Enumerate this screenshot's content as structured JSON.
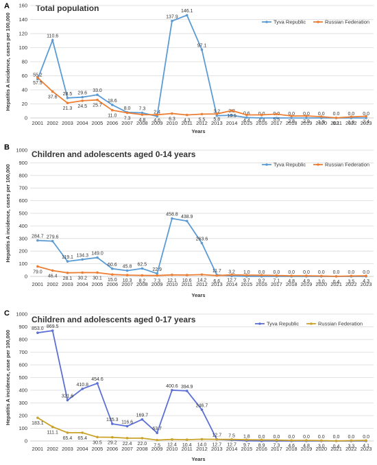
{
  "years": [
    "2001",
    "2002",
    "2003",
    "2004",
    "2005",
    "2006",
    "2007",
    "2008",
    "2009",
    "2010",
    "2011",
    "2012",
    "2013",
    "2014",
    "2015",
    "2016",
    "2017",
    "2018",
    "2019",
    "2020",
    "2021",
    "2022",
    "2023"
  ],
  "colors": {
    "tyva_ab": "#5b9bd5",
    "russia_ab": "#ed7d31",
    "tyva_c": "#5b6fd5",
    "russia_c": "#c9a227"
  },
  "chart_data": [
    {
      "type": "line",
      "panel": "A",
      "title": "Total population",
      "xlabel": "Years",
      "ylabel": "Hepatitis A incidence, cases per 100,000",
      "ylim": [
        0,
        160
      ],
      "yticks": [
        0,
        20,
        40,
        60,
        80,
        100,
        120,
        140,
        160
      ],
      "legend_position": "top-right",
      "series": [
        {
          "name": "Tyva Republic",
          "values": [
            55.2,
            110.6,
            28.5,
            29.6,
            33.0,
            18.6,
            8.0,
            7.3,
            2.4,
            137.9,
            146.1,
            97.1,
            3.2,
            3.8,
            0.6,
            0.0,
            0.0,
            0.0,
            0.0,
            0.0,
            0.0,
            0.0,
            0.0
          ],
          "labels": [
            "55.2",
            "110.6",
            "28.5",
            "29.6",
            "33.0",
            "18.6",
            "8.0",
            "7.3",
            "2.4",
            "137.9",
            "146.1",
            "97.1",
            "3.2",
            "3.8",
            "0.6",
            "0.0",
            "0.0",
            "0.0",
            "0.0",
            "0.0",
            "0.0",
            "0.0",
            "0.0"
          ]
        },
        {
          "name": "Russian Federation",
          "values": [
            57.5,
            37.6,
            21.3,
            24.5,
            25.7,
            11.0,
            7.3,
            4.8,
            4.6,
            6.3,
            4.3,
            5.5,
            5.8,
            10.5,
            4.4,
            4.4,
            5.5,
            2.8,
            2.9,
            1.9,
            0.1,
            1.6,
            2.4
          ],
          "labels": [
            "57.5",
            "37.6",
            "21.3",
            "24.5",
            "25.7",
            "11.0",
            "7.3",
            "4.8",
            "4.6",
            "6.3",
            "4.3",
            "5.5",
            "5.8",
            "10.5",
            "4.4",
            "4.4",
            "5.5",
            "2.8",
            "2.9",
            "1.9",
            "0.1",
            "1.6",
            "2.4"
          ]
        }
      ]
    },
    {
      "type": "line",
      "panel": "B",
      "title": "Children and adolescents aged 0-14 years",
      "xlabel": "Years",
      "ylabel": "Hepatitis A incidence, cases per 100,000",
      "ylim": [
        0,
        1000
      ],
      "yticks": [
        0,
        100,
        200,
        300,
        400,
        500,
        600,
        700,
        800,
        900,
        1000
      ],
      "legend_position": "top-right",
      "series": [
        {
          "name": "Tyva Republic",
          "values": [
            284.7,
            279.6,
            119.1,
            134.3,
            149.0,
            60.6,
            45.8,
            62.5,
            22.9,
            458.8,
            438.9,
            263.6,
            11.7,
            3.2,
            1.0,
            0.0,
            0.0,
            0.0,
            0.0,
            0.0,
            0.0,
            0.0,
            0.0
          ],
          "labels": [
            "284.7",
            "279.6",
            "119.1",
            "134.3",
            "149.0",
            "60.6",
            "45.8",
            "62.5",
            "22.9",
            "458.8",
            "438.9",
            "263.6",
            "11.7",
            "3.2",
            "1.0",
            "0.0",
            "0.0",
            "0.0",
            "0.0",
            "0.0",
            "0.0",
            "0.0",
            "0.0"
          ]
        },
        {
          "name": "Russian Federation",
          "values": [
            79.0,
            46.4,
            28.1,
            30.2,
            30.1,
            15.0,
            10.3,
            8.2,
            7.3,
            12.1,
            10.6,
            14.2,
            6.6,
            12.7,
            9.7,
            9.2,
            7.1,
            4.8,
            4.9,
            3.0,
            0.4,
            3.5,
            4.3
          ],
          "labels": [
            "79.0",
            "46.4",
            "28.1",
            "30.2",
            "30.1",
            "15.0",
            "10.3",
            "8.2",
            "7.3",
            "12.1",
            "10.6",
            "14.2",
            "6.6",
            "12.7",
            "9.7",
            "9.2",
            "7.1",
            "4.8",
            "4.9",
            "3.0",
            "0.4",
            "3.5",
            "4.3"
          ]
        }
      ]
    },
    {
      "type": "line",
      "panel": "C",
      "title": "Children and adolescents aged 0-17 years",
      "xlabel": "Years",
      "ylabel": "Hepatitis A incidence, case per 100,000",
      "ylim": [
        0,
        1000
      ],
      "yticks": [
        0,
        100,
        200,
        300,
        400,
        500,
        600,
        700,
        800,
        900,
        1000
      ],
      "legend_position": "top-right",
      "series": [
        {
          "name": "Tyva Republic",
          "values": [
            853.0,
            869.5,
            321.6,
            410.8,
            454.6,
            135.3,
            116.6,
            169.7,
            63.7,
            400.6,
            394.9,
            246.7,
            12.7,
            7.5,
            1.8,
            0.0,
            0.0,
            0.0,
            0.0,
            0.0,
            0.0,
            0.0,
            0.0
          ],
          "labels": [
            "853.0",
            "869.5",
            "321.6",
            "410.8",
            "454.6",
            "135.3",
            "116.6",
            "169.7",
            "63.7",
            "400.6",
            "394.9",
            "246.7",
            "12.7",
            "7.5",
            "1.8",
            "0.0",
            "0.0",
            "0.0",
            "0.0",
            "0.0",
            "0.0",
            "0.0",
            "0.0"
          ]
        },
        {
          "name": "Russian Federation",
          "values": [
            183.1,
            111.1,
            65.4,
            65.4,
            30.5,
            29.2,
            22.4,
            22.0,
            7.5,
            12.4,
            10.4,
            14.0,
            12.7,
            12.7,
            9.7,
            8.9,
            7.3,
            4.6,
            4.8,
            3.0,
            0.4,
            3.3,
            4.1
          ],
          "labels": [
            "183.1",
            "111.1",
            "65.4",
            "65.4",
            "30.5",
            "29.2",
            "22.4",
            "22.0",
            "7.5",
            "12.4",
            "10.4",
            "14.0",
            "12.7",
            "12.7",
            "9.7",
            "8.9",
            "7.3",
            "4.6",
            "4.8",
            "3.0",
            "0.4",
            "3.3",
            "4.1"
          ]
        }
      ]
    }
  ]
}
